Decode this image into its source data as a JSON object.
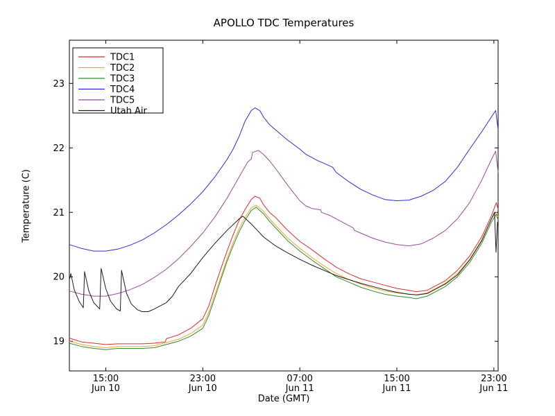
{
  "figure": {
    "title": "APOLLO TDC Temperatures",
    "xlabel": "Date (GMT)",
    "ylabel": "Temperature (C)",
    "background_color": "#ffffff",
    "frame_color": "#000000"
  },
  "chart_data": {
    "type": "line",
    "title": "APOLLO TDC Temperatures",
    "xlabel": "Date (GMT)",
    "ylabel": "Temperature (C)",
    "grid": false,
    "legend_position": "upper left",
    "x_axis_note": "x = hours elapsed starting at Jun 10 12:00 GMT",
    "xlim": [
      0,
      35.35
    ],
    "ylim": [
      18.54,
      23.67
    ],
    "x_ticks": [
      {
        "t": 3,
        "time": "15:00",
        "date": "Jun 10"
      },
      {
        "t": 11,
        "time": "23:00",
        "date": "Jun 10"
      },
      {
        "t": 19,
        "time": "07:00",
        "date": "Jun 11"
      },
      {
        "t": 27,
        "time": "15:00",
        "date": "Jun 11"
      },
      {
        "t": 35,
        "time": "23:00",
        "date": "Jun 11"
      }
    ],
    "y_ticks": [
      {
        "value": 19,
        "label": "19"
      },
      {
        "value": 20,
        "label": "20"
      },
      {
        "value": 21,
        "label": "21"
      },
      {
        "value": 22,
        "label": "22"
      },
      {
        "value": 23,
        "label": "23"
      }
    ],
    "series": [
      {
        "name": "TDC1",
        "color": "#dd2c2c",
        "points": [
          [
            0,
            19.05
          ],
          [
            1,
            18.99
          ],
          [
            2,
            18.97
          ],
          [
            3,
            18.95
          ],
          [
            4,
            18.96
          ],
          [
            5,
            18.96
          ],
          [
            6,
            18.96
          ],
          [
            7,
            18.97
          ],
          [
            7.9,
            18.99
          ],
          [
            8,
            19.04
          ],
          [
            9,
            19.1
          ],
          [
            10,
            19.2
          ],
          [
            11,
            19.35
          ],
          [
            11.5,
            19.55
          ],
          [
            12,
            19.85
          ],
          [
            12.5,
            20.13
          ],
          [
            13,
            20.4
          ],
          [
            13.5,
            20.65
          ],
          [
            14,
            20.88
          ],
          [
            14.5,
            21.05
          ],
          [
            15,
            21.2
          ],
          [
            15.3,
            21.25
          ],
          [
            15.7,
            21.22
          ],
          [
            16,
            21.12
          ],
          [
            16.5,
            21.0
          ],
          [
            17,
            20.92
          ],
          [
            17.5,
            20.82
          ],
          [
            18,
            20.72
          ],
          [
            19,
            20.55
          ],
          [
            20,
            20.42
          ],
          [
            21,
            20.28
          ],
          [
            22,
            20.15
          ],
          [
            23,
            20.05
          ],
          [
            24,
            19.97
          ],
          [
            25,
            19.92
          ],
          [
            26,
            19.87
          ],
          [
            27,
            19.82
          ],
          [
            28,
            19.79
          ],
          [
            28.6,
            19.77
          ],
          [
            29.5,
            19.79
          ],
          [
            30,
            19.84
          ],
          [
            31,
            19.94
          ],
          [
            32,
            20.1
          ],
          [
            33,
            20.32
          ],
          [
            34,
            20.62
          ],
          [
            34.8,
            20.95
          ],
          [
            35.2,
            21.15
          ],
          [
            35.35,
            21.05
          ]
        ]
      },
      {
        "name": "TDC2",
        "color": "#f5a42c",
        "points": [
          [
            0,
            19.0
          ],
          [
            1,
            18.95
          ],
          [
            2,
            18.92
          ],
          [
            3,
            18.9
          ],
          [
            4,
            18.92
          ],
          [
            5,
            18.92
          ],
          [
            6,
            18.92
          ],
          [
            7,
            18.93
          ],
          [
            8,
            18.98
          ],
          [
            9,
            19.03
          ],
          [
            10,
            19.12
          ],
          [
            11,
            19.25
          ],
          [
            11.5,
            19.45
          ],
          [
            12,
            19.73
          ],
          [
            12.5,
            20.0
          ],
          [
            13,
            20.28
          ],
          [
            13.5,
            20.53
          ],
          [
            14,
            20.75
          ],
          [
            14.5,
            20.93
          ],
          [
            15,
            21.07
          ],
          [
            15.4,
            21.11
          ],
          [
            16,
            21.02
          ],
          [
            16.5,
            20.9
          ],
          [
            17,
            20.8
          ],
          [
            18,
            20.6
          ],
          [
            19,
            20.44
          ],
          [
            20,
            20.3
          ],
          [
            21,
            20.17
          ],
          [
            22,
            20.05
          ],
          [
            23,
            19.96
          ],
          [
            24,
            19.89
          ],
          [
            25,
            19.83
          ],
          [
            26,
            19.78
          ],
          [
            27,
            19.75
          ],
          [
            28,
            19.73
          ],
          [
            28.6,
            19.72
          ],
          [
            29.5,
            19.75
          ],
          [
            30,
            19.8
          ],
          [
            31,
            19.9
          ],
          [
            32,
            20.05
          ],
          [
            33,
            20.27
          ],
          [
            34,
            20.57
          ],
          [
            34.8,
            20.9
          ],
          [
            35.2,
            21.0
          ],
          [
            35.35,
            20.93
          ]
        ]
      },
      {
        "name": "TDC3",
        "color": "#2e8b2e",
        "points": [
          [
            0,
            18.97
          ],
          [
            1,
            18.92
          ],
          [
            2,
            18.89
          ],
          [
            3,
            18.87
          ],
          [
            4,
            18.89
          ],
          [
            5,
            18.89
          ],
          [
            6,
            18.89
          ],
          [
            7,
            18.9
          ],
          [
            8,
            18.95
          ],
          [
            9,
            19.0
          ],
          [
            10,
            19.08
          ],
          [
            11,
            19.2
          ],
          [
            11.5,
            19.4
          ],
          [
            12,
            19.68
          ],
          [
            12.5,
            19.96
          ],
          [
            13,
            20.24
          ],
          [
            13.5,
            20.48
          ],
          [
            14,
            20.7
          ],
          [
            14.5,
            20.88
          ],
          [
            15,
            21.03
          ],
          [
            15.4,
            21.08
          ],
          [
            16,
            20.98
          ],
          [
            16.5,
            20.86
          ],
          [
            17,
            20.76
          ],
          [
            18,
            20.56
          ],
          [
            19,
            20.4
          ],
          [
            20,
            20.26
          ],
          [
            21,
            20.13
          ],
          [
            22,
            20.0
          ],
          [
            23,
            19.92
          ],
          [
            24,
            19.84
          ],
          [
            25,
            19.78
          ],
          [
            26,
            19.73
          ],
          [
            27,
            19.7
          ],
          [
            28,
            19.68
          ],
          [
            28.6,
            19.66
          ],
          [
            29.5,
            19.7
          ],
          [
            30,
            19.75
          ],
          [
            31,
            19.85
          ],
          [
            32,
            20.0
          ],
          [
            33,
            20.22
          ],
          [
            34,
            20.52
          ],
          [
            34.8,
            20.85
          ],
          [
            35.2,
            20.97
          ],
          [
            35.35,
            20.88
          ]
        ]
      },
      {
        "name": "TDC4",
        "color": "#2b2bdc",
        "points": [
          [
            0,
            20.5
          ],
          [
            1,
            20.44
          ],
          [
            2,
            20.4
          ],
          [
            3,
            20.4
          ],
          [
            4,
            20.43
          ],
          [
            5,
            20.49
          ],
          [
            6,
            20.57
          ],
          [
            7,
            20.68
          ],
          [
            8,
            20.81
          ],
          [
            9,
            20.96
          ],
          [
            10,
            21.13
          ],
          [
            11,
            21.32
          ],
          [
            12,
            21.55
          ],
          [
            13,
            21.82
          ],
          [
            13.5,
            21.98
          ],
          [
            14,
            22.18
          ],
          [
            14.5,
            22.42
          ],
          [
            15,
            22.58
          ],
          [
            15.3,
            22.62
          ],
          [
            15.7,
            22.58
          ],
          [
            16,
            22.48
          ],
          [
            16.5,
            22.36
          ],
          [
            17,
            22.28
          ],
          [
            17.5,
            22.2
          ],
          [
            18,
            22.12
          ],
          [
            19,
            21.98
          ],
          [
            19.5,
            21.9
          ],
          [
            20,
            21.85
          ],
          [
            20.5,
            21.8
          ],
          [
            21,
            21.76
          ],
          [
            21.7,
            21.7
          ],
          [
            22,
            21.62
          ],
          [
            23,
            21.48
          ],
          [
            24,
            21.36
          ],
          [
            25,
            21.27
          ],
          [
            26,
            21.2
          ],
          [
            27,
            21.18
          ],
          [
            28,
            21.19
          ],
          [
            29,
            21.25
          ],
          [
            30,
            21.34
          ],
          [
            31,
            21.48
          ],
          [
            32,
            21.7
          ],
          [
            33,
            21.98
          ],
          [
            34,
            22.25
          ],
          [
            34.7,
            22.45
          ],
          [
            35.15,
            22.58
          ],
          [
            35.35,
            22.28
          ]
        ]
      },
      {
        "name": "TDC5",
        "color": "#9b4a9b",
        "points": [
          [
            0,
            19.78
          ],
          [
            1,
            19.73
          ],
          [
            2,
            19.7
          ],
          [
            3,
            19.7
          ],
          [
            4,
            19.74
          ],
          [
            5,
            19.8
          ],
          [
            6,
            19.88
          ],
          [
            7,
            19.99
          ],
          [
            8,
            20.12
          ],
          [
            9,
            20.28
          ],
          [
            10,
            20.47
          ],
          [
            11,
            20.68
          ],
          [
            12,
            20.93
          ],
          [
            13,
            21.22
          ],
          [
            14,
            21.55
          ],
          [
            14.7,
            21.78
          ],
          [
            15,
            21.83
          ],
          [
            15.1,
            21.93
          ],
          [
            15.6,
            21.96
          ],
          [
            16,
            21.9
          ],
          [
            16.5,
            21.8
          ],
          [
            17,
            21.68
          ],
          [
            17.5,
            21.55
          ],
          [
            18,
            21.42
          ],
          [
            18.5,
            21.3
          ],
          [
            19,
            21.18
          ],
          [
            19.5,
            21.1
          ],
          [
            20,
            21.06
          ],
          [
            20.7,
            21.04
          ],
          [
            20.8,
            21.0
          ],
          [
            21.5,
            20.95
          ],
          [
            22,
            20.9
          ],
          [
            23,
            20.8
          ],
          [
            23.4,
            20.76
          ],
          [
            23.5,
            20.72
          ],
          [
            24,
            20.68
          ],
          [
            25,
            20.6
          ],
          [
            26,
            20.54
          ],
          [
            27,
            20.5
          ],
          [
            28,
            20.48
          ],
          [
            29,
            20.51
          ],
          [
            30,
            20.6
          ],
          [
            31,
            20.72
          ],
          [
            32,
            20.9
          ],
          [
            33,
            21.15
          ],
          [
            34,
            21.5
          ],
          [
            34.8,
            21.82
          ],
          [
            35.15,
            21.95
          ],
          [
            35.35,
            21.62
          ]
        ]
      },
      {
        "name": "Utah Air",
        "color": "#1c1c1c",
        "points": [
          [
            0,
            19.95
          ],
          [
            0.12,
            20.05
          ],
          [
            0.4,
            19.8
          ],
          [
            0.8,
            19.62
          ],
          [
            1.15,
            19.52
          ],
          [
            1.25,
            20.08
          ],
          [
            1.6,
            19.78
          ],
          [
            2,
            19.6
          ],
          [
            2.5,
            19.5
          ],
          [
            2.62,
            20.13
          ],
          [
            3,
            19.82
          ],
          [
            3.4,
            19.62
          ],
          [
            3.9,
            19.5
          ],
          [
            4.2,
            19.47
          ],
          [
            4.3,
            20.1
          ],
          [
            4.7,
            19.75
          ],
          [
            5.1,
            19.58
          ],
          [
            5.6,
            19.49
          ],
          [
            6,
            19.46
          ],
          [
            6.5,
            19.46
          ],
          [
            7,
            19.5
          ],
          [
            8,
            19.6
          ],
          [
            8.5,
            19.7
          ],
          [
            9,
            19.85
          ],
          [
            10,
            20.05
          ],
          [
            11,
            20.3
          ],
          [
            12,
            20.52
          ],
          [
            13,
            20.72
          ],
          [
            14,
            20.9
          ],
          [
            14.3,
            20.94
          ],
          [
            15,
            20.82
          ],
          [
            15.5,
            20.72
          ],
          [
            16,
            20.62
          ],
          [
            17,
            20.48
          ],
          [
            18,
            20.37
          ],
          [
            19,
            20.27
          ],
          [
            20,
            20.18
          ],
          [
            21,
            20.1
          ],
          [
            22,
            20.02
          ],
          [
            23,
            19.96
          ],
          [
            24,
            19.9
          ],
          [
            25,
            19.85
          ],
          [
            26,
            19.8
          ],
          [
            27,
            19.76
          ],
          [
            28,
            19.73
          ],
          [
            28.7,
            19.72
          ],
          [
            29.5,
            19.74
          ],
          [
            30,
            19.79
          ],
          [
            31,
            19.89
          ],
          [
            32,
            20.03
          ],
          [
            33,
            20.26
          ],
          [
            34,
            20.56
          ],
          [
            34.8,
            20.9
          ],
          [
            35.05,
            21.0
          ],
          [
            35.18,
            20.38
          ],
          [
            35.3,
            20.85
          ]
        ]
      }
    ]
  }
}
